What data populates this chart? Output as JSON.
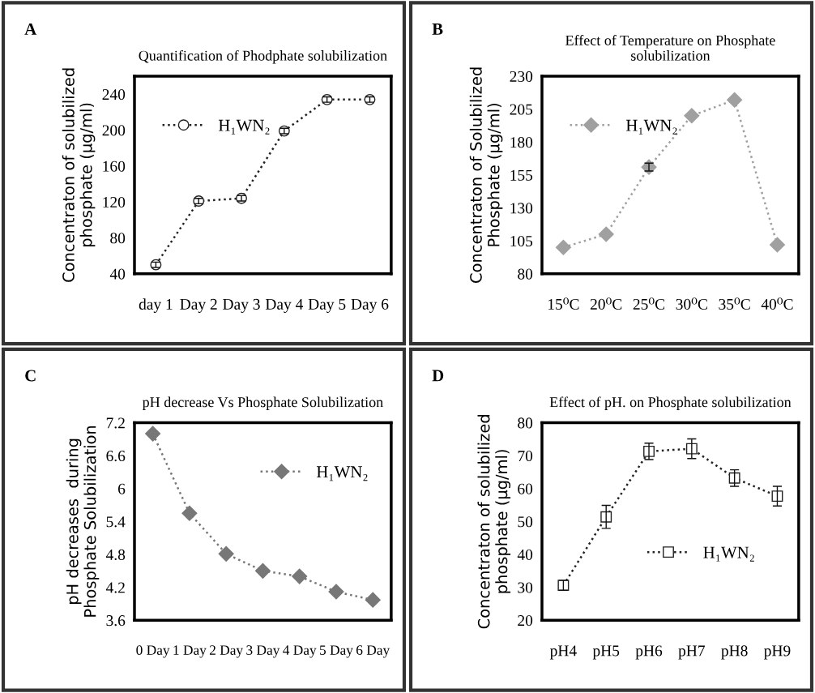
{
  "chart_data": [
    {
      "type": "line",
      "title": "Quantification of Phodphate solubilization",
      "ylabel": "Concentraton of solubilized\nphosphate (µg/ml)",
      "annotations": [
        "A"
      ],
      "categories": [
        "day 1",
        "Day 2",
        "Day 3",
        "Day 4",
        "Day 5",
        "Day 6"
      ],
      "series": [
        {
          "name": "H₁WN₂",
          "color": "#222222",
          "values": [
            50,
            121,
            124,
            199,
            234,
            234
          ],
          "errors": [
            3,
            3,
            3,
            3,
            3,
            3
          ],
          "marker": "circle"
        }
      ],
      "ylim": [
        40,
        260
      ],
      "yticks": [
        40,
        80,
        120,
        160,
        200,
        240
      ],
      "line_style": "dotted",
      "legend": "top left",
      "grid": false
    },
    {
      "type": "line",
      "title": "Effect of Temperature on Phosphate\nsolubilization",
      "ylabel": "Concentraton of Solubilized\nPhosphate (µg/ml)",
      "annotations": [
        "B"
      ],
      "categories": [
        "15⁰C",
        "20⁰C",
        "25⁰C",
        "30⁰C",
        "35⁰C",
        "40⁰C"
      ],
      "series": [
        {
          "name": "H₁WN₂",
          "color": "#a0a0a0",
          "values": [
            100,
            110,
            161,
            200,
            212,
            102
          ],
          "errors": [
            null,
            null,
            3,
            null,
            null,
            null
          ],
          "marker": "diamond"
        }
      ],
      "ylim": [
        80,
        230
      ],
      "yticks": [
        80,
        105,
        130,
        155,
        180,
        205,
        230
      ],
      "line_style": "dotted",
      "legend": "top left",
      "grid": false
    },
    {
      "type": "line",
      "title": "pH decrease Vs Phosphate Solubilization",
      "ylabel": "pH decreases  during\nPhosphate Solubilization",
      "annotations": [
        "C"
      ],
      "categories": [
        "0 Day",
        "1 Day",
        "2 Day",
        "3 Day",
        "4 Day",
        "5 Day",
        "6 Day"
      ],
      "series": [
        {
          "name": "H₁WN₂",
          "color": "#777777",
          "values": [
            7.0,
            5.55,
            4.81,
            4.5,
            4.4,
            4.12,
            3.97
          ],
          "marker": "diamond"
        }
      ],
      "ylim": [
        3.6,
        7.2
      ],
      "yticks": [
        3.6,
        4.2,
        4.8,
        {
          "value": 5.4,
          "label": "5.4"
        },
        6,
        6.6,
        7.2
      ],
      "line_style": "dotted",
      "legend": "top right",
      "grid": false
    },
    {
      "type": "line",
      "title": "Effect of pH. on Phosphate solubilization",
      "ylabel": "Concentraton of solubilized\nphosphate (µg/ml)",
      "annotations": [
        "D"
      ],
      "categories": [
        "pH4",
        "pH5",
        "pH6",
        "pH7",
        "pH8",
        "pH9"
      ],
      "series": [
        {
          "name": "H₁WN₂",
          "color": "#222222",
          "values": [
            30.6,
            51.4,
            71.3,
            72.1,
            63.2,
            57.7
          ],
          "errors": [
            1.5,
            3.5,
            2.5,
            3,
            2.5,
            3
          ],
          "marker": "square"
        }
      ],
      "ylim": [
        20,
        80
      ],
      "yticks": [
        20,
        30,
        40,
        50,
        60,
        70,
        80
      ],
      "line_style": "dotted",
      "legend": "bottom",
      "grid": false
    }
  ]
}
